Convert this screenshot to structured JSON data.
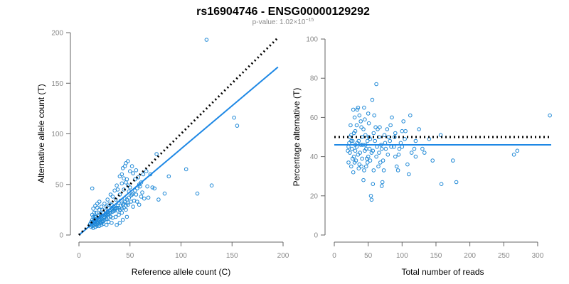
{
  "title": "rs16904746 - ENSG00000129292",
  "subtitle": {
    "prefix": "p-value: 1.02×10",
    "exponent": "−15"
  },
  "colors": {
    "points": "#1e88d6",
    "fit": "#1e88e5",
    "reference": "#000000"
  },
  "chart_data": [
    {
      "type": "scatter",
      "xlabel": "Reference allele count (C)",
      "ylabel": "Alternative allele count (T)",
      "xlim": [
        0,
        200
      ],
      "ylim": [
        0,
        200
      ],
      "xticks": [
        0,
        50,
        100,
        150,
        200
      ],
      "yticks": [
        0,
        50,
        100,
        150,
        200
      ],
      "grid": false,
      "lines": [
        {
          "style": "solid",
          "color": "#1e88e5",
          "x": [
            0,
            195
          ],
          "y": [
            0,
            166
          ]
        },
        {
          "style": "dotted",
          "color": "#000000",
          "x": [
            0,
            195
          ],
          "y": [
            0,
            195
          ]
        }
      ],
      "points": [
        [
          125,
          193
        ],
        [
          152,
          116
        ],
        [
          155,
          108
        ],
        [
          105,
          65
        ],
        [
          130,
          49
        ],
        [
          116,
          41
        ],
        [
          88,
          58
        ],
        [
          76,
          80
        ],
        [
          78,
          35
        ],
        [
          63,
          60
        ],
        [
          66,
          63
        ],
        [
          70,
          60
        ],
        [
          60,
          48
        ],
        [
          58,
          57
        ],
        [
          56,
          40
        ],
        [
          72,
          47
        ],
        [
          84,
          41
        ],
        [
          50,
          63
        ],
        [
          45,
          68
        ],
        [
          46,
          71
        ],
        [
          48,
          73
        ],
        [
          43,
          66
        ],
        [
          52,
          68
        ],
        [
          40,
          58
        ],
        [
          47,
          55
        ],
        [
          55,
          55
        ],
        [
          42,
          51
        ],
        [
          50,
          47
        ],
        [
          37,
          49
        ],
        [
          35,
          44
        ],
        [
          38,
          45
        ],
        [
          44,
          45
        ],
        [
          49,
          43
        ],
        [
          40,
          40
        ],
        [
          31,
          40
        ],
        [
          33,
          38
        ],
        [
          36,
          35
        ],
        [
          28,
          35
        ],
        [
          30,
          31
        ],
        [
          25,
          31
        ],
        [
          27,
          28
        ],
        [
          22,
          28
        ],
        [
          18,
          27
        ],
        [
          20,
          25
        ],
        [
          23,
          25
        ],
        [
          17,
          22
        ],
        [
          15,
          22
        ],
        [
          13,
          20
        ],
        [
          14,
          18
        ],
        [
          16,
          18
        ],
        [
          19,
          19
        ],
        [
          21,
          21
        ],
        [
          24,
          22
        ],
        [
          26,
          24
        ],
        [
          29,
          27
        ],
        [
          32,
          30
        ],
        [
          34,
          28
        ],
        [
          39,
          32
        ],
        [
          41,
          34
        ],
        [
          45,
          36
        ],
        [
          52,
          40
        ],
        [
          54,
          34
        ],
        [
          57,
          33
        ],
        [
          61,
          38
        ],
        [
          64,
          36
        ],
        [
          53,
          28
        ],
        [
          46,
          25
        ],
        [
          42,
          22
        ],
        [
          39,
          20
        ],
        [
          36,
          18
        ],
        [
          33,
          17
        ],
        [
          31,
          22
        ],
        [
          28,
          20
        ],
        [
          25,
          17
        ],
        [
          22,
          16
        ],
        [
          20,
          14
        ],
        [
          18,
          12
        ],
        [
          16,
          11
        ],
        [
          14,
          10
        ],
        [
          13,
          9
        ],
        [
          12,
          8
        ],
        [
          15,
          14
        ],
        [
          17,
          16
        ],
        [
          19,
          15
        ],
        [
          21,
          18
        ],
        [
          23,
          19
        ],
        [
          26,
          21
        ],
        [
          30,
          24
        ],
        [
          35,
          26
        ],
        [
          38,
          29
        ],
        [
          44,
          31
        ],
        [
          48,
          30
        ],
        [
          51,
          33
        ],
        [
          59,
          30
        ],
        [
          62,
          42
        ],
        [
          67,
          48
        ],
        [
          74,
          46
        ],
        [
          68,
          37
        ],
        [
          47,
          18
        ],
        [
          43,
          15
        ],
        [
          40,
          12
        ],
        [
          37,
          10
        ],
        [
          32,
          12
        ],
        [
          29,
          13
        ],
        [
          27,
          10
        ],
        [
          24,
          11
        ],
        [
          22,
          10
        ],
        [
          20,
          9
        ],
        [
          18,
          9
        ],
        [
          16,
          8
        ],
        [
          14,
          7
        ],
        [
          13,
          12
        ],
        [
          12,
          13
        ],
        [
          11,
          11
        ],
        [
          13,
          15
        ],
        [
          15,
          16
        ],
        [
          17,
          18
        ],
        [
          19,
          12
        ],
        [
          21,
          13
        ],
        [
          23,
          14
        ],
        [
          25,
          15
        ],
        [
          27,
          16
        ],
        [
          29,
          17
        ],
        [
          31,
          18
        ],
        [
          33,
          23
        ],
        [
          35,
          24
        ],
        [
          37,
          27
        ],
        [
          39,
          27
        ],
        [
          41,
          29
        ],
        [
          43,
          30
        ],
        [
          45,
          33
        ],
        [
          47,
          35
        ],
        [
          49,
          37
        ],
        [
          51,
          39
        ],
        [
          53,
          41
        ],
        [
          55,
          44
        ],
        [
          57,
          46
        ],
        [
          59,
          50
        ],
        [
          61,
          52
        ],
        [
          48,
          49
        ],
        [
          46,
          52
        ],
        [
          44,
          56
        ],
        [
          42,
          60
        ],
        [
          53,
          61
        ],
        [
          56,
          64
        ],
        [
          13,
          46
        ],
        [
          14,
          26
        ],
        [
          16,
          29
        ],
        [
          18,
          31
        ],
        [
          20,
          33
        ],
        [
          12,
          10
        ],
        [
          13,
          11
        ],
        [
          14,
          12
        ],
        [
          15,
          13
        ],
        [
          16,
          14
        ],
        [
          17,
          10
        ],
        [
          18,
          11
        ],
        [
          19,
          13
        ],
        [
          20,
          16
        ],
        [
          21,
          17
        ],
        [
          22,
          12
        ],
        [
          23,
          13
        ],
        [
          24,
          14
        ],
        [
          25,
          18
        ],
        [
          26,
          19
        ],
        [
          27,
          20
        ],
        [
          28,
          23
        ],
        [
          29,
          21
        ],
        [
          30,
          22
        ],
        [
          31,
          25
        ],
        [
          32,
          26
        ],
        [
          33,
          27
        ],
        [
          34,
          24
        ],
        [
          36,
          26
        ],
        [
          38,
          24
        ],
        [
          40,
          25
        ],
        [
          42,
          26
        ],
        [
          44,
          27
        ],
        [
          46,
          29
        ],
        [
          48,
          32
        ]
      ]
    },
    {
      "type": "scatter",
      "xlabel": "Total number of reads",
      "ylabel": "Percentage alternative (T)",
      "xlim": [
        0,
        320
      ],
      "ylim": [
        0,
        100
      ],
      "xticks": [
        0,
        50,
        100,
        150,
        200,
        250,
        300
      ],
      "yticks": [
        0,
        20,
        40,
        60,
        80,
        100
      ],
      "grid": false,
      "lines": [
        {
          "style": "solid",
          "color": "#1e88e5",
          "x": [
            0,
            320
          ],
          "y": [
            46,
            46
          ]
        },
        {
          "style": "dotted",
          "color": "#000000",
          "x": [
            0,
            320
          ],
          "y": [
            50,
            50
          ]
        }
      ],
      "points": [
        [
          318,
          61
        ],
        [
          270,
          43
        ],
        [
          265,
          41
        ],
        [
          180,
          27
        ],
        [
          175,
          38
        ],
        [
          158,
          26
        ],
        [
          157,
          51
        ],
        [
          145,
          38
        ],
        [
          133,
          42
        ],
        [
          130,
          44
        ],
        [
          125,
          54
        ],
        [
          120,
          48
        ],
        [
          118,
          44
        ],
        [
          112,
          61
        ],
        [
          110,
          31
        ],
        [
          105,
          53
        ],
        [
          102,
          58
        ],
        [
          100,
          53
        ],
        [
          98,
          47
        ],
        [
          95,
          41
        ],
        [
          92,
          35
        ],
        [
          90,
          40
        ],
        [
          88,
          45
        ],
        [
          85,
          60
        ],
        [
          83,
          56
        ],
        [
          80,
          50
        ],
        [
          78,
          54
        ],
        [
          75,
          47
        ],
        [
          73,
          33
        ],
        [
          71,
          27
        ],
        [
          70,
          25
        ],
        [
          68,
          37
        ],
        [
          66,
          42
        ],
        [
          64,
          54
        ],
        [
          62,
          77
        ],
        [
          60,
          48
        ],
        [
          58,
          33
        ],
        [
          57,
          26
        ],
        [
          56,
          69
        ],
        [
          55,
          18
        ],
        [
          54,
          20
        ],
        [
          53,
          38
        ],
        [
          52,
          44
        ],
        [
          51,
          57
        ],
        [
          50,
          62
        ],
        [
          49,
          48
        ],
        [
          48,
          39
        ],
        [
          47,
          35
        ],
        [
          46,
          51
        ],
        [
          45,
          43
        ],
        [
          44,
          33
        ],
        [
          43,
          28
        ],
        [
          42,
          46
        ],
        [
          41,
          50
        ],
        [
          40,
          55
        ],
        [
          39,
          58
        ],
        [
          38,
          42
        ],
        [
          37,
          36
        ],
        [
          36,
          34
        ],
        [
          35,
          65
        ],
        [
          34,
          47
        ],
        [
          33,
          45
        ],
        [
          32,
          38
        ],
        [
          31,
          53
        ],
        [
          30,
          60
        ],
        [
          29,
          40
        ],
        [
          28,
          32
        ],
        [
          27,
          48
        ],
        [
          26,
          44
        ],
        [
          25,
          51
        ],
        [
          24,
          56
        ],
        [
          23,
          42
        ],
        [
          22,
          47
        ],
        [
          21,
          37
        ],
        [
          20,
          43
        ],
        [
          120,
          40
        ],
        [
          140,
          49
        ],
        [
          100,
          45
        ],
        [
          90,
          52
        ],
        [
          82,
          48
        ],
        [
          76,
          44
        ],
        [
          72,
          38
        ],
        [
          67,
          55
        ],
        [
          63,
          45
        ],
        [
          59,
          61
        ],
        [
          55,
          42
        ],
        [
          51,
          50
        ],
        [
          47,
          44
        ],
        [
          43,
          54
        ],
        [
          39,
          46
        ],
        [
          35,
          41
        ],
        [
          31,
          46
        ],
        [
          27,
          39
        ],
        [
          23,
          50
        ],
        [
          21,
          45
        ],
        [
          33,
          56
        ],
        [
          37,
          61
        ],
        [
          41,
          39
        ],
        [
          45,
          59
        ],
        [
          49,
          37
        ],
        [
          53,
          49
        ],
        [
          57,
          43
        ],
        [
          61,
          55
        ],
        [
          65,
          35
        ],
        [
          69,
          46
        ],
        [
          74,
          51
        ],
        [
          79,
          41
        ],
        [
          84,
          45
        ],
        [
          89,
          50
        ],
        [
          94,
          33
        ],
        [
          96,
          44
        ],
        [
          104,
          49
        ],
        [
          108,
          36
        ],
        [
          114,
          42
        ],
        [
          28,
          64
        ],
        [
          34,
          64
        ],
        [
          44,
          65
        ],
        [
          25,
          48
        ],
        [
          29,
          52
        ],
        [
          31,
          43
        ],
        [
          36,
          48
        ],
        [
          40,
          35
        ],
        [
          46,
          46
        ],
        [
          50,
          40
        ],
        [
          58,
          52
        ],
        [
          62,
          40
        ],
        [
          66,
          50
        ],
        [
          70,
          44
        ],
        [
          25,
          35
        ],
        [
          30,
          37
        ]
      ]
    }
  ]
}
